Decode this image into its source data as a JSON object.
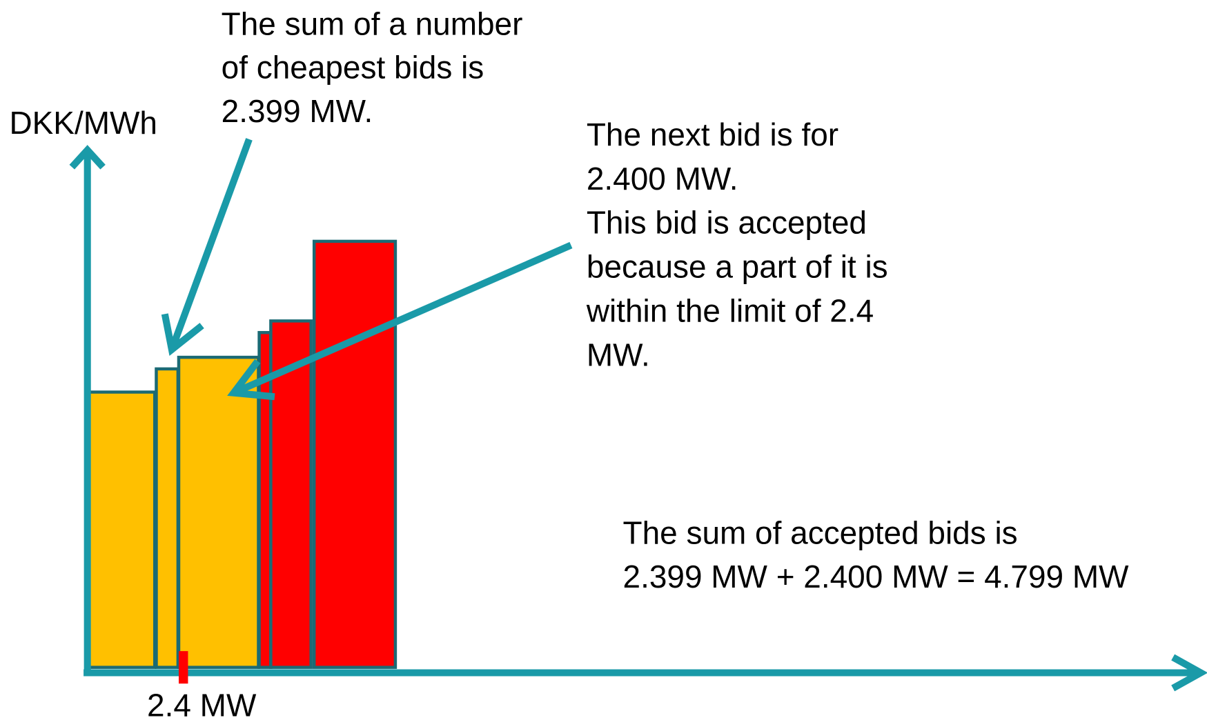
{
  "axis_label": "DKK/MWh",
  "annotations": [
    {
      "lines": [
        "The sum of a number",
        "of cheapest bids is",
        "2.399 MW."
      ]
    },
    {
      "lines": [
        "The next bid is for",
        "2.400 MW.",
        "This bid is accepted",
        "because a part of it is",
        "within the limit of 2.4",
        "MW."
      ]
    },
    {
      "lines": [
        "The sum of accepted bids is",
        "2.399 MW + 2.400 MW = 4.799 MW"
      ]
    }
  ],
  "marker_label": "2.4 MW"
}
